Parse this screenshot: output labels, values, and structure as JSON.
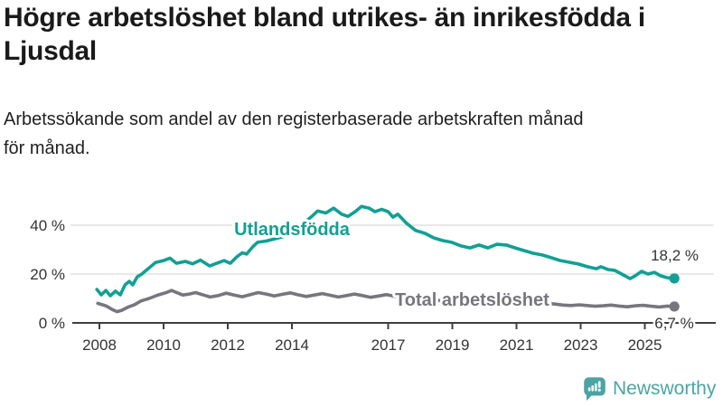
{
  "header": {
    "title": "Högre arbetslöshet bland utrikes- än inrikesfödda i Ljusdal",
    "subtitle": "Arbetssökande som andel av den registerbaserade arbetskraften månad för månad."
  },
  "footer": {
    "brand": "Newsworthy"
  },
  "colors": {
    "teal": "#11A094",
    "gray": "#76767E",
    "logo_teal": "#4BA4A4",
    "axis": "#3F3F3F",
    "grid": "#D9D9D9",
    "tick_text": "#333333",
    "title_text": "#1A1A1A"
  },
  "chart_data": {
    "type": "line",
    "unit": "%",
    "x_axis": {
      "tick_values": [
        2008,
        2010,
        2012,
        2014,
        2017,
        2019,
        2021,
        2023,
        2025
      ],
      "tick_labels": [
        "2008",
        "2010",
        "2012",
        "2014",
        "2017",
        "2019",
        "2021",
        "2023",
        "2025"
      ],
      "range": [
        2007.9,
        2026.1
      ]
    },
    "y_axis": {
      "tick_values": [
        0,
        20,
        40
      ],
      "tick_labels": [
        "0 %",
        "20 %",
        "40 %"
      ],
      "range": [
        0,
        50
      ],
      "grid": true
    },
    "legend_position": "inline-labels",
    "series": [
      {
        "name": "Utlandsfödda",
        "color": "#11A094",
        "end_label": "18,2 %",
        "end_value": 18.2,
        "points": [
          [
            2007.92,
            13.7
          ],
          [
            2008.06,
            11.5
          ],
          [
            2008.2,
            13.3
          ],
          [
            2008.34,
            11.1
          ],
          [
            2008.5,
            13.0
          ],
          [
            2008.65,
            11.5
          ],
          [
            2008.8,
            15.6
          ],
          [
            2008.93,
            17.0
          ],
          [
            2009.04,
            15.6
          ],
          [
            2009.18,
            18.9
          ],
          [
            2009.32,
            20.0
          ],
          [
            2009.46,
            21.5
          ],
          [
            2009.75,
            24.7
          ],
          [
            2010.0,
            25.5
          ],
          [
            2010.2,
            26.5
          ],
          [
            2010.4,
            24.4
          ],
          [
            2010.68,
            25.2
          ],
          [
            2010.9,
            24.2
          ],
          [
            2011.15,
            25.7
          ],
          [
            2011.44,
            23.3
          ],
          [
            2011.66,
            24.4
          ],
          [
            2011.89,
            25.5
          ],
          [
            2012.08,
            24.4
          ],
          [
            2012.28,
            27.0
          ],
          [
            2012.45,
            28.7
          ],
          [
            2012.59,
            28.2
          ],
          [
            2012.79,
            31.3
          ],
          [
            2012.93,
            33.0
          ],
          [
            2013.2,
            33.5
          ],
          [
            2013.5,
            34.5
          ],
          [
            2013.77,
            35.5
          ],
          [
            2014.05,
            37.5
          ],
          [
            2014.34,
            40.5
          ],
          [
            2014.62,
            43.6
          ],
          [
            2014.8,
            45.8
          ],
          [
            2015.06,
            45.0
          ],
          [
            2015.3,
            47.0
          ],
          [
            2015.55,
            44.5
          ],
          [
            2015.75,
            43.6
          ],
          [
            2015.97,
            45.5
          ],
          [
            2016.17,
            47.7
          ],
          [
            2016.4,
            47.0
          ],
          [
            2016.59,
            45.5
          ],
          [
            2016.8,
            46.5
          ],
          [
            2017.0,
            45.5
          ],
          [
            2017.15,
            43.3
          ],
          [
            2017.3,
            44.5
          ],
          [
            2017.58,
            40.7
          ],
          [
            2017.86,
            37.8
          ],
          [
            2018.14,
            36.7
          ],
          [
            2018.42,
            34.8
          ],
          [
            2018.7,
            33.7
          ],
          [
            2018.98,
            33.0
          ],
          [
            2019.27,
            31.5
          ],
          [
            2019.55,
            30.7
          ],
          [
            2019.83,
            31.9
          ],
          [
            2020.11,
            30.7
          ],
          [
            2020.39,
            32.2
          ],
          [
            2020.68,
            31.9
          ],
          [
            2020.96,
            30.7
          ],
          [
            2021.24,
            29.6
          ],
          [
            2021.52,
            28.5
          ],
          [
            2021.8,
            27.8
          ],
          [
            2022.08,
            26.7
          ],
          [
            2022.37,
            25.5
          ],
          [
            2022.65,
            24.8
          ],
          [
            2022.93,
            24.1
          ],
          [
            2023.21,
            23.0
          ],
          [
            2023.49,
            22.2
          ],
          [
            2023.63,
            23.0
          ],
          [
            2023.86,
            21.8
          ],
          [
            2024.06,
            21.5
          ],
          [
            2024.28,
            20.0
          ],
          [
            2024.54,
            18.1
          ],
          [
            2024.7,
            19.3
          ],
          [
            2024.9,
            21.1
          ],
          [
            2025.1,
            20.0
          ],
          [
            2025.3,
            20.7
          ],
          [
            2025.49,
            19.3
          ],
          [
            2025.69,
            18.5
          ],
          [
            2025.92,
            18.2
          ]
        ]
      },
      {
        "name": "Total arbetslöshet",
        "color": "#76767E",
        "end_label": "6,7 %",
        "end_value": 6.7,
        "points": [
          [
            2007.95,
            8.0
          ],
          [
            2008.2,
            7.0
          ],
          [
            2008.4,
            5.5
          ],
          [
            2008.55,
            4.6
          ],
          [
            2008.7,
            5.2
          ],
          [
            2008.9,
            6.5
          ],
          [
            2009.1,
            7.5
          ],
          [
            2009.3,
            9.0
          ],
          [
            2009.55,
            10.0
          ],
          [
            2009.8,
            11.3
          ],
          [
            2010.1,
            12.5
          ],
          [
            2010.25,
            13.3
          ],
          [
            2010.45,
            12.2
          ],
          [
            2010.6,
            11.4
          ],
          [
            2010.8,
            11.8
          ],
          [
            2011.0,
            12.4
          ],
          [
            2011.2,
            11.6
          ],
          [
            2011.45,
            10.6
          ],
          [
            2011.7,
            11.2
          ],
          [
            2011.95,
            12.2
          ],
          [
            2012.2,
            11.4
          ],
          [
            2012.45,
            10.7
          ],
          [
            2012.7,
            11.6
          ],
          [
            2012.95,
            12.4
          ],
          [
            2013.2,
            11.8
          ],
          [
            2013.45,
            11.0
          ],
          [
            2013.7,
            11.7
          ],
          [
            2013.95,
            12.3
          ],
          [
            2014.2,
            11.5
          ],
          [
            2014.45,
            10.8
          ],
          [
            2014.7,
            11.4
          ],
          [
            2014.95,
            12.0
          ],
          [
            2015.2,
            11.3
          ],
          [
            2015.45,
            10.6
          ],
          [
            2015.7,
            11.2
          ],
          [
            2015.95,
            11.8
          ],
          [
            2016.2,
            11.2
          ],
          [
            2016.45,
            10.5
          ],
          [
            2016.7,
            11.0
          ],
          [
            2016.95,
            11.6
          ],
          [
            2017.2,
            10.9
          ],
          [
            2017.45,
            10.3
          ],
          [
            2017.7,
            9.9
          ],
          [
            2017.95,
            10.4
          ],
          [
            2018.2,
            9.8
          ],
          [
            2018.45,
            9.3
          ],
          [
            2018.7,
            9.0
          ],
          [
            2018.95,
            9.5
          ],
          [
            2019.2,
            9.0
          ],
          [
            2019.45,
            8.6
          ],
          [
            2019.7,
            8.4
          ],
          [
            2019.95,
            8.9
          ],
          [
            2020.2,
            9.6
          ],
          [
            2020.45,
            9.2
          ],
          [
            2020.7,
            8.9
          ],
          [
            2020.95,
            8.7
          ],
          [
            2021.2,
            8.3
          ],
          [
            2021.45,
            7.9
          ],
          [
            2021.7,
            7.7
          ],
          [
            2021.95,
            8.0
          ],
          [
            2022.2,
            7.7
          ],
          [
            2022.45,
            7.3
          ],
          [
            2022.7,
            7.1
          ],
          [
            2022.95,
            7.4
          ],
          [
            2023.2,
            7.1
          ],
          [
            2023.45,
            6.8
          ],
          [
            2023.7,
            7.0
          ],
          [
            2023.95,
            7.3
          ],
          [
            2024.2,
            6.9
          ],
          [
            2024.45,
            6.6
          ],
          [
            2024.7,
            7.0
          ],
          [
            2024.95,
            7.2
          ],
          [
            2025.2,
            6.8
          ],
          [
            2025.45,
            6.5
          ],
          [
            2025.7,
            6.9
          ],
          [
            2025.92,
            6.7
          ]
        ]
      }
    ]
  }
}
